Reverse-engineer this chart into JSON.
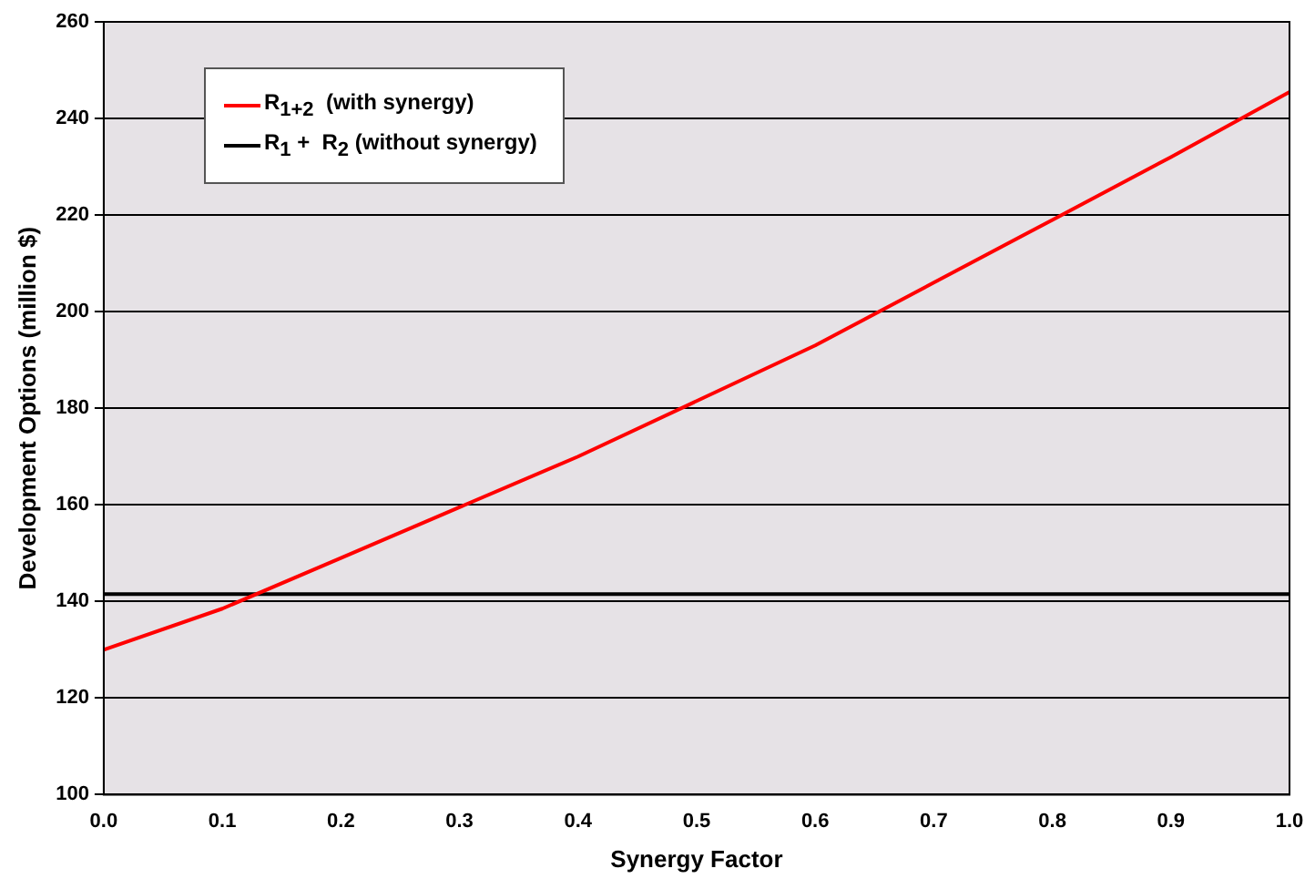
{
  "chart_data": {
    "type": "line",
    "xlabel": "Synergy Factor",
    "ylabel": "Development Options (million $)",
    "x": [
      0,
      0.1,
      0.2,
      0.3,
      0.4,
      0.5,
      0.6,
      0.7,
      0.8,
      0.9,
      1.0
    ],
    "series": [
      {
        "name": "R$_{1+2}$  (with synergy)",
        "color": "#ff0000",
        "values": [
          130,
          138.5,
          149,
          159.5,
          170,
          181.5,
          193,
          206,
          219,
          232,
          245.5
        ]
      },
      {
        "name": "R$_{1}$ +  R$_{2}$ (without synergy)",
        "color": "#000000",
        "x": [
          0,
          1
        ],
        "values": [
          141.5,
          141.5
        ]
      }
    ],
    "xlim": [
      0,
      1
    ],
    "xticks": [
      {
        "value": 0,
        "label": "0.0"
      },
      {
        "value": 0.1,
        "label": "0.1"
      },
      {
        "value": 0.2,
        "label": "0.2"
      },
      {
        "value": 0.3,
        "label": "0.3"
      },
      {
        "value": 0.4,
        "label": "0.4"
      },
      {
        "value": 0.5,
        "label": "0.5"
      },
      {
        "value": 0.6,
        "label": "0.6"
      },
      {
        "value": 0.7,
        "label": "0.7"
      },
      {
        "value": 0.8,
        "label": "0.8"
      },
      {
        "value": 0.9,
        "label": "0.9"
      },
      {
        "value": 1,
        "label": "1.0"
      }
    ],
    "ylim": [
      100,
      260
    ],
    "yticks": [
      100,
      120,
      140,
      160,
      180,
      200,
      220,
      240,
      260
    ],
    "grid": "y",
    "legend": "top left",
    "marker": "none",
    "line_style": "solid"
  }
}
